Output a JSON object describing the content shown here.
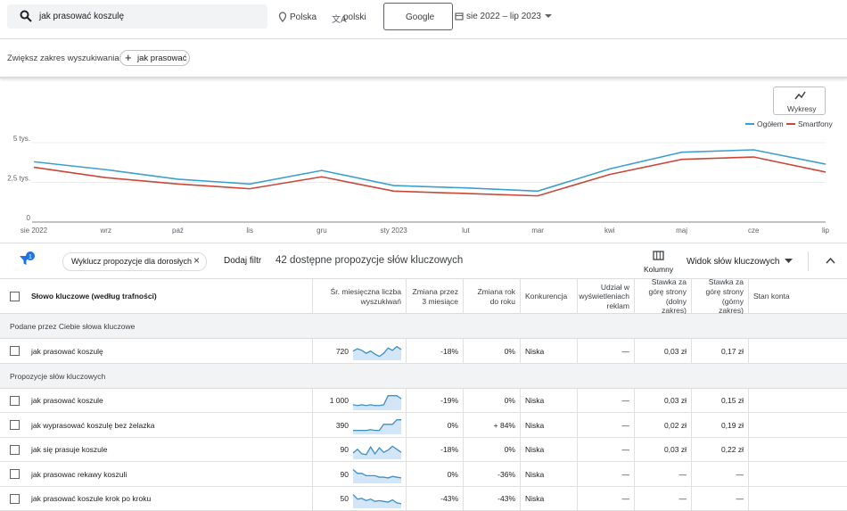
{
  "search": {
    "query": "jak prasować koszulę",
    "location": "Polska",
    "language": "polski",
    "network": "Google",
    "date_range": "sie 2022 – lip 2023"
  },
  "broaden": {
    "label": "Zwiększ zakres wyszukiwania:",
    "chip": "jak prasować"
  },
  "chart_button": "Wykresy",
  "chart_data": {
    "type": "line",
    "categories": [
      "sie 2022",
      "wrz",
      "paź",
      "lis",
      "gru",
      "sty 2023",
      "lut",
      "mar",
      "kwi",
      "maj",
      "cze",
      "lip"
    ],
    "series": [
      {
        "name": "Ogółem",
        "color": "#3d9fd0",
        "values": [
          3800,
          3300,
          2700,
          2400,
          3250,
          2300,
          2150,
          1950,
          3350,
          4400,
          4550,
          3650
        ]
      },
      {
        "name": "Smartfony",
        "color": "#c9473b",
        "values": [
          3450,
          2800,
          2400,
          2100,
          2850,
          1950,
          1800,
          1650,
          3000,
          3950,
          4100,
          3150
        ]
      }
    ],
    "ylim": [
      0,
      5000
    ],
    "yticks": [
      0,
      {
        "value": 2500,
        "label": "2,5 tys."
      },
      {
        "value": 5000,
        "label": "5 tys."
      }
    ],
    "grid": true,
    "legend": "top-right"
  },
  "toolbar": {
    "filter_count": "1",
    "filter_chip": "Wyklucz propozycje dla dorosłych",
    "add_filter": "Dodaj filtr",
    "summary": "42 dostępne propozycje słów kluczowych",
    "columns": "Kolumny",
    "view": "Widok słów kluczowych"
  },
  "table": {
    "headers": [
      "Słowo kluczowe (według trafności)",
      "Śr. miesięczna liczba wyszukiwań",
      "Zmiana przez 3 miesiące",
      "Zmiana rok do roku",
      "Konkurencja",
      "Udział w wyświetleniach reklam",
      "Stawka za górę strony (dolny zakres)",
      "Stawka za górę strony (górny zakres)",
      "Stan konta"
    ],
    "groups": [
      {
        "title": "Podane przez Ciebie słowa kluczowe",
        "rows": [
          {
            "cells": [
              "jak prasować koszulę",
              "720",
              "-18%",
              "0%",
              "Niska",
              "—",
              "0,03 zł",
              "0,17 zł"
            ],
            "trend": [
              55,
              70,
              60,
              40,
              55,
              35,
              20,
              40,
              75,
              60,
              85,
              65
            ]
          }
        ]
      },
      {
        "title": "Propozycje słów kluczowych",
        "rows": [
          {
            "cells": [
              "jak prasować koszule",
              "1 000",
              "-19%",
              "0%",
              "Niska",
              "—",
              "0,03 zł",
              "0,15 zł"
            ],
            "trend": [
              30,
              25,
              30,
              25,
              30,
              25,
              25,
              30,
              90,
              90,
              90,
              70
            ]
          },
          {
            "cells": [
              "jak wyprasować koszulę bez żelazka",
              "390",
              "0%",
              "+ 84%",
              "Niska",
              "—",
              "0,02 zł",
              "0,19 zł"
            ],
            "trend": [
              20,
              20,
              20,
              20,
              25,
              20,
              20,
              60,
              60,
              60,
              90,
              90
            ]
          },
          {
            "cells": [
              "jak się prasuje koszule",
              "90",
              "-18%",
              "0%",
              "Niska",
              "—",
              "0,03 zł",
              "0,22 zł"
            ],
            "trend": [
              35,
              60,
              30,
              25,
              75,
              30,
              70,
              40,
              55,
              80,
              60,
              40
            ]
          },
          {
            "cells": [
              "jak prasowac rekawy koszuli",
              "90",
              "0%",
              "-36%",
              "Niska",
              "—",
              "—",
              "—"
            ],
            "trend": [
              85,
              60,
              60,
              45,
              45,
              45,
              35,
              35,
              30,
              40,
              35,
              30
            ]
          },
          {
            "cells": [
              "jak prasować koszule krok po kroku",
              "50",
              "-43%",
              "-43%",
              "Niska",
              "—",
              "—",
              "—"
            ],
            "trend": [
              85,
              55,
              60,
              45,
              55,
              40,
              45,
              40,
              35,
              50,
              30,
              25
            ]
          }
        ]
      }
    ]
  }
}
